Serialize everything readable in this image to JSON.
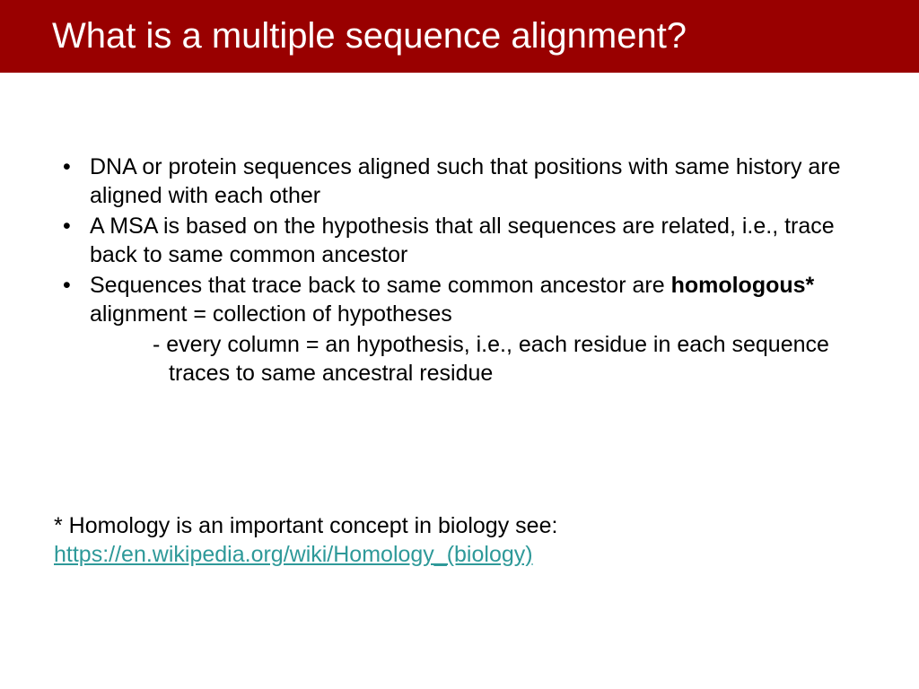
{
  "colors": {
    "title_bg": "#990000",
    "title_text": "#ffffff",
    "body_text": "#000000",
    "link": "#2e9999"
  },
  "typography": {
    "title_fontsize": 40,
    "body_fontsize": 25,
    "font_family": "Arial"
  },
  "title": "What is a multiple sequence alignment?",
  "bullets": [
    {
      "text": "DNA or protein sequences aligned such that positions with same history are aligned with each other"
    },
    {
      "text": "A MSA is based on the hypothesis that all sequences are related, i.e., trace back to same common ancestor"
    },
    {
      "text_before_bold": "Sequences that trace back to same common ancestor are ",
      "bold": "homologous*",
      "text_after_bold": " alignment = collection of hypotheses",
      "sub": "- every column = an hypothesis, i.e., each residue in each sequence traces to same ancestral residue"
    }
  ],
  "footnote": {
    "text": "* Homology is an important concept in biology see:",
    "link_text": "https://en.wikipedia.org/wiki/Homology_(biology)",
    "link_href": "https://en.wikipedia.org/wiki/Homology_(biology)"
  }
}
